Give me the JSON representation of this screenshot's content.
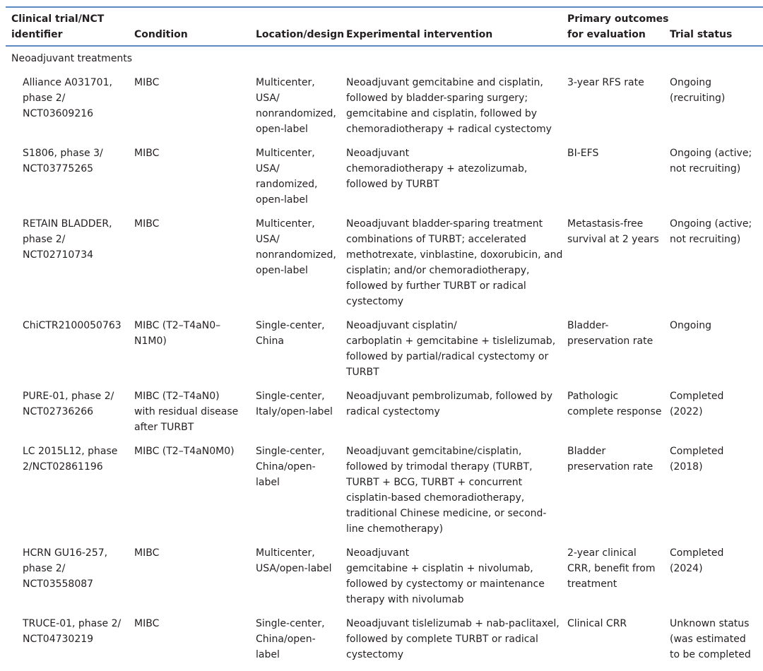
{
  "headers": [
    "Clinical trial/NCT\nidentifier",
    "Condition",
    "Location/design",
    "Experimental intervention",
    "Primary outcomes\nfor evaluation",
    "Trial status"
  ],
  "section": "Neoadjuvant treatments",
  "rows": [
    [
      "Alliance A031701,\nphase 2/\nNCT03609216",
      "MIBC",
      "Multicenter,\nUSA/\nnonrandomized,\nopen-label",
      "Neoadjuvant gemcitabine and cisplatin,\nfollowed by bladder-sparing surgery;\ngemcitabine and cisplatin, followed by\nchemoradiotherapy + radical cystectomy",
      "3-year RFS rate",
      "Ongoing\n(recruiting)"
    ],
    [
      "S1806, phase 3/\nNCT03775265",
      "MIBC",
      "Multicenter,\nUSA/\nrandomized,\nopen-label",
      "Neoadjuvant\nchemoradiotherapy + atezolizumab,\nfollowed by TURBT",
      "BI-EFS",
      "Ongoing (active;\nnot recruiting)"
    ],
    [
      "RETAIN BLADDER,\nphase 2/\nNCT02710734",
      "MIBC",
      "Multicenter,\nUSA/\nnonrandomized,\nopen-label",
      "Neoadjuvant bladder-sparing treatment\ncombinations of TURBT; accelerated\nmethotrexate, vinblastine, doxorubicin, and\ncisplatin; and/or chemoradiotherapy,\nfollowed by further TURBT or radical\ncystectomy",
      "Metastasis-free\nsurvival at 2 years",
      "Ongoing (active;\nnot recruiting)"
    ],
    [
      "ChiCTR2100050763",
      "MIBC (T2–T4aN0–\nN1M0)",
      "Single-center,\nChina",
      "Neoadjuvant cisplatin/\ncarboplatin + gemcitabine + tislelizumab,\nfollowed by partial/radical cystectomy or\nTURBT",
      "Bladder-\npreservation rate",
      "Ongoing"
    ],
    [
      "PURE-01, phase 2/\nNCT02736266",
      "MIBC (T2–T4aN0)\nwith residual disease\nafter TURBT",
      "Single-center,\nItaly/open-label",
      "Neoadjuvant pembrolizumab, followed by\nradical cystectomy",
      "Pathologic\ncomplete response",
      "Completed\n(2022)"
    ],
    [
      "LC 2015L12, phase\n2/NCT02861196",
      "MIBC (T2–T4aN0M0)",
      "Single-center,\nChina/open-\nlabel",
      "Neoadjuvant gemcitabine/cisplatin,\nfollowed by trimodal therapy (TURBT,\nTURBT + BCG, TURBT + concurrent\ncisplatin-based chemoradiotherapy,\ntraditional Chinese medicine, or second-\nline chemotherapy)",
      "Bladder\npreservation rate",
      "Completed\n(2018)"
    ],
    [
      "HCRN GU16-257,\nphase 2/\nNCT03558087",
      "MIBC",
      "Multicenter,\nUSA/open-label",
      "Neoadjuvant\ngemcitabine + cisplatin + nivolumab,\nfollowed by cystectomy or maintenance\ntherapy with nivolumab",
      "2-year clinical\nCRR, benefit from\ntreatment",
      "Completed\n(2024)"
    ],
    [
      "TRUCE-01, phase 2/\nNCT04730219",
      "MIBC",
      "Single-center,\nChina/open-\nlabel",
      "Neoadjuvant tislelizumab + nab-paclitaxel,\nfollowed by complete TURBT or radical\ncystectomy",
      "Clinical CRR",
      "Unknown status\n(was estimated\nto be completed"
    ]
  ]
}
